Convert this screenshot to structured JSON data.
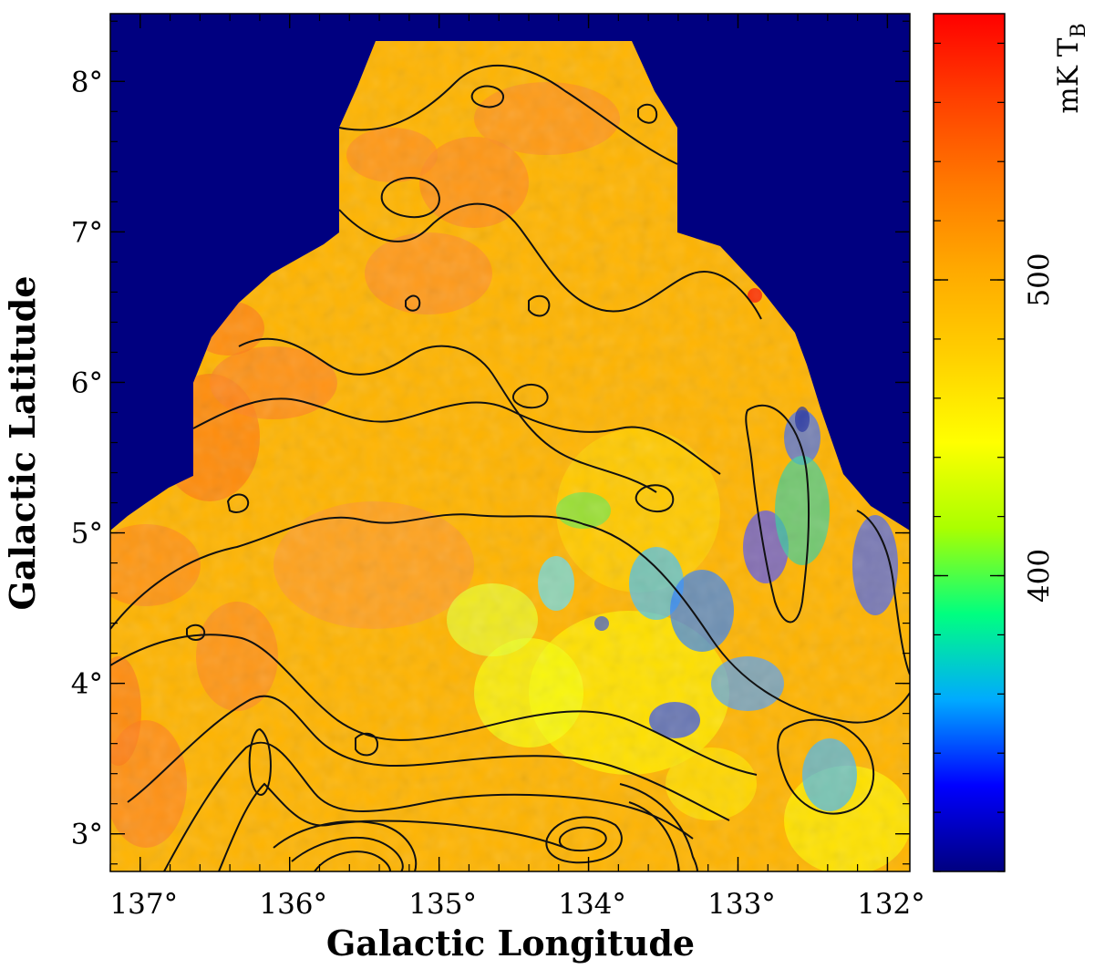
{
  "chart_data": {
    "type": "heatmap",
    "title": "",
    "xlabel": "Galactic Longitude",
    "ylabel": "Galactic Latitude",
    "xlim": [
      137.2,
      131.85
    ],
    "ylim": [
      2.75,
      8.45
    ],
    "x_ticks": [
      137,
      136,
      135,
      134,
      133,
      132
    ],
    "x_tick_labels": [
      "137°",
      "136°",
      "135°",
      "134°",
      "133°",
      "132°"
    ],
    "y_ticks": [
      3,
      4,
      5,
      6,
      7,
      8
    ],
    "y_tick_labels": [
      "3°",
      "4°",
      "5°",
      "6°",
      "7°",
      "8°"
    ],
    "minor_tick_step": 0.2,
    "colorbar": {
      "label": "mK T",
      "label_subscript": "B",
      "range": [
        300,
        590
      ],
      "ticks": [
        400,
        500
      ],
      "tick_labels": [
        "400",
        "500"
      ],
      "minor_tick_step": 20,
      "colors": [
        "#000080",
        "#0000ff",
        "#00aaff",
        "#00ff80",
        "#aaff00",
        "#ffff00",
        "#ffd000",
        "#ffaa00",
        "#ff7a00",
        "#ff4000",
        "#ff0000"
      ]
    },
    "blank_color": "#000080",
    "contour_color": "#000000"
  }
}
